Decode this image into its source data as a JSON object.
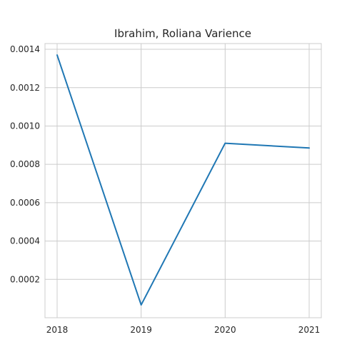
{
  "chart_data": {
    "type": "line",
    "title": "Ibrahim, Roliana Varience",
    "xlabel": "",
    "ylabel": "",
    "x": [
      "2018",
      "2019",
      "2020",
      "2021"
    ],
    "series": [
      {
        "values": [
          0.00137,
          6.65e-05,
          0.00091,
          0.000885
        ]
      }
    ],
    "ylim": [
      0.0,
      0.00143
    ],
    "yticks": [
      "0.0002",
      "0.0004",
      "0.0006",
      "0.0008",
      "0.0010",
      "0.0012",
      "0.0014"
    ],
    "ytick_values": [
      0.0002,
      0.0004,
      0.0006,
      0.0008,
      0.001,
      0.0012,
      0.0014
    ],
    "grid": true,
    "legend": "none",
    "colors": {
      "line": "#1f77b4",
      "grid": "#cccccc",
      "spine": "#cccccc",
      "text": "#262626"
    }
  }
}
